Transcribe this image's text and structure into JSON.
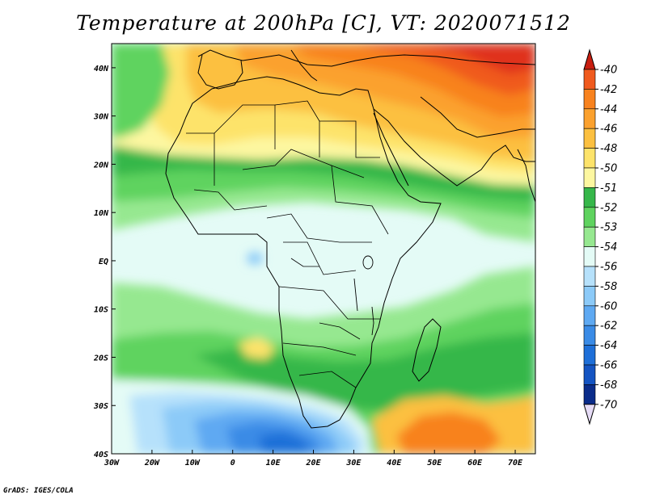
{
  "title": "Temperature at 200hPa [C], VT: 2020071512",
  "credit": "GrADS: IGES/COLA",
  "map": {
    "lon_range": [
      -30,
      75
    ],
    "lat_range": [
      -40,
      45
    ],
    "lat_ticks": [
      {
        "value": 40,
        "label": "40N"
      },
      {
        "value": 30,
        "label": "30N"
      },
      {
        "value": 20,
        "label": "20N"
      },
      {
        "value": 10,
        "label": "10N"
      },
      {
        "value": 0,
        "label": "EQ"
      },
      {
        "value": -10,
        "label": "10S"
      },
      {
        "value": -20,
        "label": "20S"
      },
      {
        "value": -30,
        "label": "30S"
      },
      {
        "value": -40,
        "label": "40S"
      }
    ],
    "lon_ticks": [
      {
        "value": -30,
        "label": "30W"
      },
      {
        "value": -20,
        "label": "20W"
      },
      {
        "value": -10,
        "label": "10W"
      },
      {
        "value": 0,
        "label": "0"
      },
      {
        "value": 10,
        "label": "10E"
      },
      {
        "value": 20,
        "label": "20E"
      },
      {
        "value": 30,
        "label": "30E"
      },
      {
        "value": 40,
        "label": "40E"
      },
      {
        "value": 50,
        "label": "50E"
      },
      {
        "value": 60,
        "label": "60E"
      },
      {
        "value": 70,
        "label": "70E"
      }
    ]
  },
  "colorbar": {
    "levels": [
      {
        "label": "-40",
        "color": "#e0301e"
      },
      {
        "label": "-42",
        "color": "#f05a1e"
      },
      {
        "label": "-44",
        "color": "#f8821e"
      },
      {
        "label": "-46",
        "color": "#fba12e"
      },
      {
        "label": "-48",
        "color": "#fcc040"
      },
      {
        "label": "-50",
        "color": "#fde36a"
      },
      {
        "label": "-51",
        "color": "#fdf7a0"
      },
      {
        "label": "-52",
        "color": "#36b74a"
      },
      {
        "label": "-53",
        "color": "#5fd35f"
      },
      {
        "label": "-54",
        "color": "#96e890"
      },
      {
        "label": "-56",
        "color": "#e4fbf6"
      },
      {
        "label": "-58",
        "color": "#b6e1fb"
      },
      {
        "label": "-60",
        "color": "#8ccaf8"
      },
      {
        "label": "-62",
        "color": "#5ea9f2"
      },
      {
        "label": "-64",
        "color": "#3a8be6"
      },
      {
        "label": "-66",
        "color": "#1e6fd8"
      },
      {
        "label": "-68",
        "color": "#1454c2"
      },
      {
        "label": "-70",
        "color": "#0a2c8a"
      }
    ],
    "top_cap_color": "#c81e10",
    "bottom_cap_color": "#e6dcf6"
  }
}
